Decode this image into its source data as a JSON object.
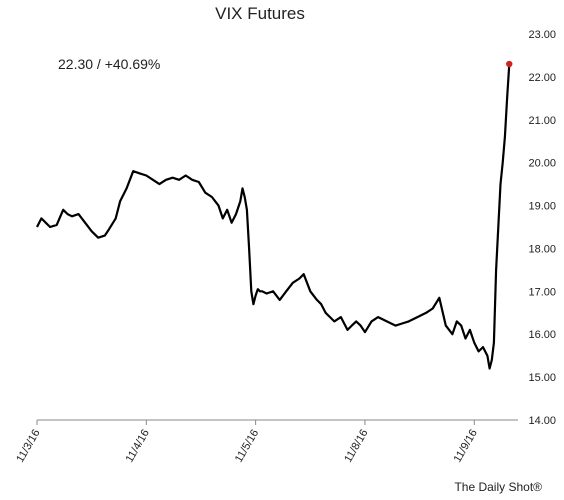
{
  "chart_data": {
    "type": "line",
    "title": "VIX Futures",
    "annotation": "22.30  /  +40.69%",
    "credit": "The Daily Shot®",
    "xlabel": "",
    "ylabel": "",
    "ylim": [
      14.0,
      23.0
    ],
    "yticks": [
      14.0,
      15.0,
      16.0,
      17.0,
      18.0,
      19.0,
      20.0,
      21.0,
      22.0,
      23.0
    ],
    "ytick_labels": [
      "14.00",
      "15.00",
      "16.00",
      "17.00",
      "18.00",
      "19.00",
      "20.00",
      "21.00",
      "22.00",
      "23.00"
    ],
    "y_axis_side": "right",
    "grid": false,
    "xlim": [
      0,
      4.4
    ],
    "xticks": [
      0,
      1,
      2,
      3,
      4
    ],
    "xtick_labels": [
      "11/3/16",
      "11/4/16",
      "11/5/16",
      "11/8/16",
      "11/9/16"
    ],
    "series": [
      {
        "color": "#000000",
        "x": [
          0.0,
          0.04,
          0.08,
          0.12,
          0.18,
          0.24,
          0.28,
          0.32,
          0.38,
          0.44,
          0.5,
          0.56,
          0.62,
          0.66,
          0.72,
          0.76,
          0.82,
          0.88,
          0.94,
          1.0,
          1.06,
          1.12,
          1.18,
          1.24,
          1.3,
          1.36,
          1.42,
          1.48,
          1.54,
          1.6,
          1.66,
          1.7,
          1.74,
          1.78,
          1.82,
          1.86,
          1.88,
          1.9,
          1.92,
          1.94,
          1.96,
          1.98,
          2.0,
          2.02,
          2.04,
          2.06,
          2.1,
          2.16,
          2.22,
          2.28,
          2.34,
          2.4,
          2.44,
          2.5,
          2.56,
          2.6,
          2.64,
          2.68,
          2.72,
          2.78,
          2.84,
          2.88,
          2.92,
          2.96,
          3.0,
          3.06,
          3.12,
          3.2,
          3.28,
          3.34,
          3.4,
          3.48,
          3.56,
          3.62,
          3.68,
          3.74,
          3.8,
          3.84,
          3.88,
          3.92,
          3.96,
          4.0,
          4.04,
          4.08,
          4.12,
          4.14,
          4.16,
          4.18,
          4.2,
          4.22,
          4.24,
          4.26,
          4.28,
          4.3,
          4.32
        ],
        "y": [
          18.5,
          18.7,
          18.6,
          18.5,
          18.55,
          18.9,
          18.8,
          18.75,
          18.8,
          18.6,
          18.4,
          18.25,
          18.3,
          18.45,
          18.7,
          19.1,
          19.4,
          19.8,
          19.75,
          19.7,
          19.6,
          19.5,
          19.6,
          19.65,
          19.6,
          19.7,
          19.6,
          19.55,
          19.3,
          19.2,
          19.0,
          18.7,
          18.9,
          18.6,
          18.8,
          19.1,
          19.4,
          19.2,
          18.9,
          18.0,
          17.0,
          16.7,
          16.9,
          17.05,
          17.0,
          17.0,
          16.95,
          17.0,
          16.8,
          17.0,
          17.2,
          17.3,
          17.4,
          17.0,
          16.8,
          16.7,
          16.5,
          16.4,
          16.3,
          16.4,
          16.1,
          16.2,
          16.3,
          16.2,
          16.05,
          16.3,
          16.4,
          16.3,
          16.2,
          16.25,
          16.3,
          16.4,
          16.5,
          16.6,
          16.85,
          16.2,
          16.0,
          16.3,
          16.2,
          15.9,
          16.1,
          15.8,
          15.6,
          15.7,
          15.5,
          15.2,
          15.4,
          15.8,
          17.5,
          18.5,
          19.5,
          20.0,
          20.6,
          21.5,
          22.3
        ]
      }
    ],
    "end_marker": {
      "x": 4.32,
      "y": 22.3,
      "color": "#cc2222"
    }
  }
}
